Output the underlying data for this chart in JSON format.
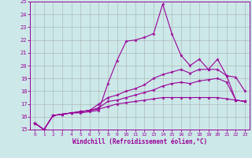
{
  "xlabel": "Windchill (Refroidissement éolien,°C)",
  "xlim": [
    -0.5,
    23.5
  ],
  "ylim": [
    15,
    25
  ],
  "xticks": [
    0,
    1,
    2,
    3,
    4,
    5,
    6,
    7,
    8,
    9,
    10,
    11,
    12,
    13,
    14,
    15,
    16,
    17,
    18,
    19,
    20,
    21,
    22,
    23
  ],
  "yticks": [
    15,
    16,
    17,
    18,
    19,
    20,
    21,
    22,
    23,
    24,
    25
  ],
  "bg_color": "#cce8e8",
  "line_color": "#990099",
  "grid_color": "#999999",
  "line1_y": [
    15.5,
    15.0,
    16.1,
    16.2,
    16.3,
    16.3,
    16.4,
    16.5,
    18.6,
    20.4,
    21.9,
    22.0,
    22.2,
    22.5,
    24.8,
    22.5,
    20.8,
    20.0,
    20.5,
    19.7,
    20.5,
    19.2,
    19.1,
    18.0
  ],
  "line2_y": [
    15.5,
    15.0,
    16.1,
    16.2,
    16.3,
    16.4,
    16.5,
    17.0,
    17.5,
    17.7,
    18.0,
    18.2,
    18.5,
    19.0,
    19.3,
    19.5,
    19.7,
    19.4,
    19.7,
    19.7,
    19.7,
    19.2,
    17.3,
    17.2
  ],
  "line3_y": [
    15.5,
    15.0,
    16.1,
    16.2,
    16.3,
    16.4,
    16.5,
    16.7,
    17.2,
    17.3,
    17.5,
    17.7,
    17.9,
    18.1,
    18.4,
    18.6,
    18.7,
    18.6,
    18.8,
    18.9,
    19.0,
    18.7,
    17.3,
    17.2
  ],
  "line4_y": [
    15.5,
    15.0,
    16.1,
    16.2,
    16.3,
    16.4,
    16.5,
    16.6,
    16.8,
    17.0,
    17.1,
    17.2,
    17.3,
    17.4,
    17.5,
    17.5,
    17.5,
    17.5,
    17.5,
    17.5,
    17.5,
    17.4,
    17.3,
    17.2
  ]
}
